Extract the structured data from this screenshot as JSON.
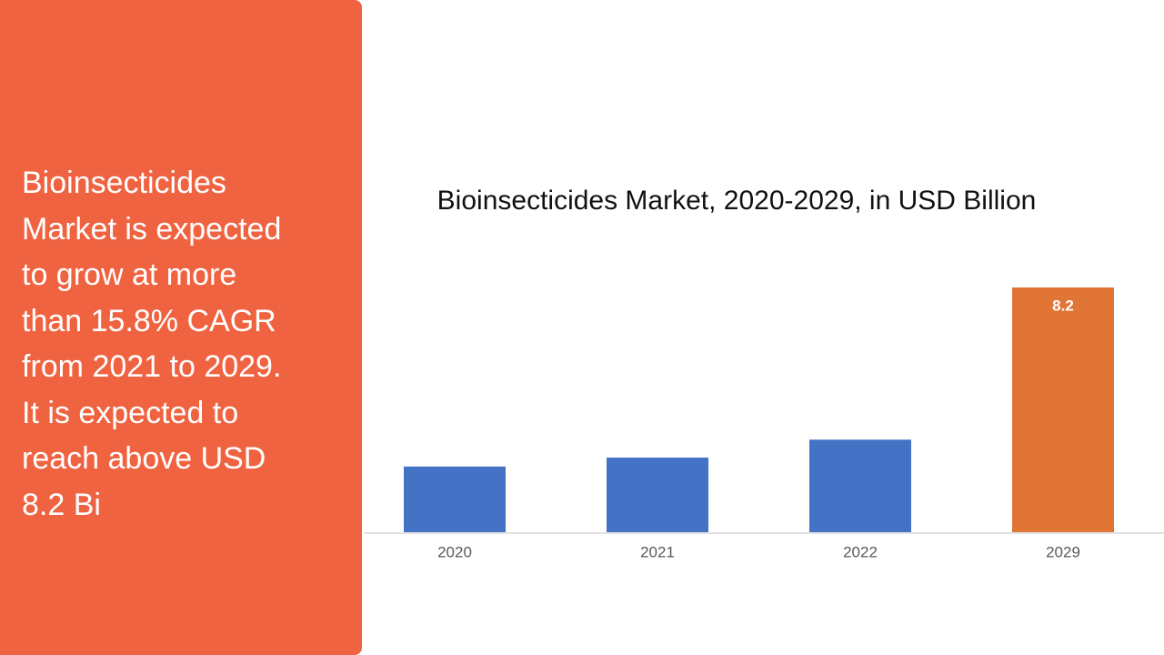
{
  "panel": {
    "lines": [
      "Bioinsecticides",
      "Market is expected",
      "to grow at more",
      "than 15.8% CAGR",
      "from 2021 to 2029.",
      "It is expected to",
      "reach above USD",
      "8.2 Bi"
    ]
  },
  "chart_data": {
    "type": "bar",
    "title": "Bioinsecticides Market, 2020-2029, in USD Billion",
    "categories": [
      "2020",
      "2021",
      "2022",
      "2029"
    ],
    "values": [
      2.2,
      2.5,
      3.1,
      8.2
    ],
    "value_labels": [
      null,
      null,
      null,
      "8.2"
    ],
    "colors": [
      "#4472c4",
      "#4472c4",
      "#4472c4",
      "#e07535"
    ]
  }
}
